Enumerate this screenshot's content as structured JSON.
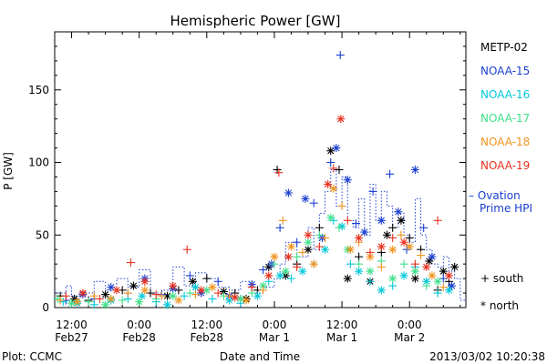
{
  "chart_data": {
    "type": "scatter",
    "title": "Hemispheric Power [GW]",
    "ylabel": "P [GW]",
    "xlabel": "Date and Time",
    "ylim": [
      0,
      190
    ],
    "y_ticks": [
      0,
      50,
      100,
      150
    ],
    "x_ticks": [
      {
        "hours": 0,
        "line1": "12:00",
        "line2": "Feb27"
      },
      {
        "hours": 12,
        "line1": "0:00",
        "line2": "Feb28"
      },
      {
        "hours": 24,
        "line1": "12:00",
        "line2": "Feb28"
      },
      {
        "hours": 36,
        "line1": "0:00",
        "line2": "Mar 1"
      },
      {
        "hours": 48,
        "line1": "12:00",
        "line2": "Mar 1"
      },
      {
        "hours": 60,
        "line1": "0:00",
        "line2": "Mar 2"
      }
    ],
    "xlim_hours": [
      -3,
      70
    ],
    "series": [
      {
        "name": "METP-02",
        "color": "#000000",
        "points": [
          [
            -2,
            8
          ],
          [
            0.5,
            6
          ],
          [
            3,
            5
          ],
          [
            6,
            9
          ],
          [
            9,
            12
          ],
          [
            11,
            15
          ],
          [
            14,
            10
          ],
          [
            17,
            8
          ],
          [
            19,
            12
          ],
          [
            21.5,
            18
          ],
          [
            24,
            20
          ],
          [
            27,
            11
          ],
          [
            29,
            10
          ],
          [
            31,
            6
          ],
          [
            33,
            12
          ],
          [
            35,
            28
          ],
          [
            36.5,
            95
          ],
          [
            38,
            22
          ],
          [
            40,
            30
          ],
          [
            42,
            40
          ],
          [
            44,
            55
          ],
          [
            46,
            108
          ],
          [
            47.5,
            95
          ],
          [
            49,
            20
          ],
          [
            51,
            35
          ],
          [
            53,
            18
          ],
          [
            55,
            38
          ],
          [
            56,
            50
          ],
          [
            57,
            55
          ],
          [
            58.5,
            60
          ],
          [
            60,
            48
          ],
          [
            61,
            20
          ],
          [
            62,
            40
          ],
          [
            63.5,
            32
          ],
          [
            65,
            12
          ],
          [
            66,
            25
          ],
          [
            67,
            18
          ],
          [
            68,
            28
          ]
        ]
      },
      {
        "name": "NOAA-15",
        "color": "#1b3fcf",
        "points": [
          [
            -1,
            5
          ],
          [
            2,
            9
          ],
          [
            4,
            6
          ],
          [
            7,
            14
          ],
          [
            10,
            10
          ],
          [
            13,
            20
          ],
          [
            16,
            9
          ],
          [
            18,
            13
          ],
          [
            21,
            22
          ],
          [
            23,
            10
          ],
          [
            26,
            18
          ],
          [
            28,
            8
          ],
          [
            30,
            6
          ],
          [
            32,
            16
          ],
          [
            34,
            26
          ],
          [
            35.5,
            30
          ],
          [
            37,
            55
          ],
          [
            38.5,
            79
          ],
          [
            40,
            45
          ],
          [
            41.5,
            75
          ],
          [
            43,
            72
          ],
          [
            44.5,
            48
          ],
          [
            46,
            100
          ],
          [
            47,
            110
          ],
          [
            47.7,
            174
          ],
          [
            49,
            88
          ],
          [
            50.5,
            58
          ],
          [
            52,
            52
          ],
          [
            53.5,
            80
          ],
          [
            55,
            60
          ],
          [
            56.5,
            92
          ],
          [
            58,
            66
          ],
          [
            59.5,
            40
          ],
          [
            61,
            95
          ],
          [
            62.5,
            55
          ],
          [
            64,
            35
          ],
          [
            66,
            20
          ],
          [
            67.5,
            15
          ]
        ]
      },
      {
        "name": "NOAA-16",
        "color": "#00c8d8",
        "points": [
          [
            -1.5,
            4
          ],
          [
            1,
            3
          ],
          [
            4,
            2
          ],
          [
            7,
            5
          ],
          [
            10,
            6
          ],
          [
            12.5,
            8
          ],
          [
            15,
            4
          ],
          [
            17,
            2
          ],
          [
            20,
            8
          ],
          [
            22,
            14
          ],
          [
            25,
            6
          ],
          [
            28,
            5
          ],
          [
            30,
            3
          ],
          [
            33,
            8
          ],
          [
            35,
            18
          ],
          [
            37,
            22
          ],
          [
            39,
            20
          ],
          [
            41,
            25
          ],
          [
            43,
            30
          ],
          [
            45,
            40
          ],
          [
            46.5,
            60
          ],
          [
            48,
            56
          ],
          [
            49.5,
            30
          ],
          [
            51,
            25
          ],
          [
            53,
            18
          ],
          [
            55,
            12
          ],
          [
            57,
            15
          ],
          [
            59,
            22
          ],
          [
            61,
            28
          ],
          [
            63,
            18
          ],
          [
            65,
            10
          ],
          [
            67,
            12
          ]
        ]
      },
      {
        "name": "NOAA-17",
        "color": "#3ee08a",
        "points": [
          [
            -2.5,
            6
          ],
          [
            0,
            3
          ],
          [
            3,
            4
          ],
          [
            6,
            2
          ],
          [
            9,
            5
          ],
          [
            12,
            4
          ],
          [
            15,
            6
          ],
          [
            18,
            8
          ],
          [
            21,
            10
          ],
          [
            24,
            12
          ],
          [
            27,
            8
          ],
          [
            30,
            6
          ],
          [
            32,
            10
          ],
          [
            34,
            15
          ],
          [
            36,
            30
          ],
          [
            38,
            25
          ],
          [
            40,
            35
          ],
          [
            42,
            45
          ],
          [
            44,
            50
          ],
          [
            46,
            62
          ],
          [
            47.5,
            55
          ],
          [
            49,
            40
          ],
          [
            51,
            30
          ],
          [
            53,
            25
          ],
          [
            55,
            32
          ],
          [
            57,
            20
          ],
          [
            59,
            30
          ],
          [
            61,
            25
          ],
          [
            63,
            15
          ],
          [
            65,
            18
          ]
        ]
      },
      {
        "name": "NOAA-18",
        "color": "#f0941e",
        "points": [
          [
            -2,
            5
          ],
          [
            1,
            4
          ],
          [
            4,
            8
          ],
          [
            7,
            6
          ],
          [
            10,
            10
          ],
          [
            13,
            12
          ],
          [
            16,
            8
          ],
          [
            19,
            5
          ],
          [
            22,
            9
          ],
          [
            25,
            14
          ],
          [
            28,
            8
          ],
          [
            31,
            5
          ],
          [
            34,
            12
          ],
          [
            36,
            35
          ],
          [
            37.5,
            60
          ],
          [
            39,
            42
          ],
          [
            41,
            38
          ],
          [
            43,
            30
          ],
          [
            45,
            48
          ],
          [
            46.5,
            82
          ],
          [
            48,
            70
          ],
          [
            49.5,
            40
          ],
          [
            51,
            45
          ],
          [
            53,
            35
          ],
          [
            55,
            28
          ],
          [
            57,
            40
          ],
          [
            58.5,
            50
          ],
          [
            60,
            42
          ],
          [
            62,
            36
          ],
          [
            64,
            22
          ],
          [
            66,
            14
          ]
        ]
      },
      {
        "name": "NOAA-19",
        "color": "#e8301e",
        "points": [
          [
            -1,
            8
          ],
          [
            2,
            10
          ],
          [
            5,
            6
          ],
          [
            8,
            12
          ],
          [
            10.5,
            31
          ],
          [
            13,
            18
          ],
          [
            15,
            9
          ],
          [
            18,
            15
          ],
          [
            20.5,
            40
          ],
          [
            23,
            12
          ],
          [
            26,
            10
          ],
          [
            29,
            7
          ],
          [
            32,
            14
          ],
          [
            35,
            22
          ],
          [
            36.8,
            93
          ],
          [
            38.5,
            35
          ],
          [
            40,
            28
          ],
          [
            42,
            50
          ],
          [
            44,
            42
          ],
          [
            45.5,
            85
          ],
          [
            46.5,
            96
          ],
          [
            47.8,
            130
          ],
          [
            49,
            60
          ],
          [
            51,
            48
          ],
          [
            53,
            38
          ],
          [
            55,
            42
          ],
          [
            57,
            48
          ],
          [
            59,
            45
          ],
          [
            61,
            30
          ],
          [
            63,
            28
          ],
          [
            65,
            60
          ],
          [
            67,
            22
          ]
        ]
      }
    ],
    "ovation_name": "– Ovation Prime HPI",
    "ovation_color": "#1b3fcf",
    "ovation_steps": [
      [
        -3,
        10
      ],
      [
        -1,
        15
      ],
      [
        0,
        8
      ],
      [
        2,
        10
      ],
      [
        4,
        18
      ],
      [
        6,
        12
      ],
      [
        8,
        20
      ],
      [
        10,
        14
      ],
      [
        12,
        26
      ],
      [
        14,
        10
      ],
      [
        16,
        12
      ],
      [
        18,
        28
      ],
      [
        20,
        15
      ],
      [
        22,
        24
      ],
      [
        24,
        20
      ],
      [
        26,
        14
      ],
      [
        28,
        12
      ],
      [
        30,
        18
      ],
      [
        32,
        10
      ],
      [
        34,
        14
      ],
      [
        36,
        20
      ],
      [
        37,
        30
      ],
      [
        38,
        45
      ],
      [
        40,
        35
      ],
      [
        42,
        55
      ],
      [
        43,
        40
      ],
      [
        44,
        65
      ],
      [
        45,
        80
      ],
      [
        46,
        95
      ],
      [
        47,
        70
      ],
      [
        48,
        90
      ],
      [
        49,
        60
      ],
      [
        50,
        55
      ],
      [
        51,
        75
      ],
      [
        52,
        50
      ],
      [
        53,
        85
      ],
      [
        54,
        60
      ],
      [
        55,
        80
      ],
      [
        56,
        70
      ],
      [
        57,
        55
      ],
      [
        58,
        65
      ],
      [
        59,
        50
      ],
      [
        60,
        45
      ],
      [
        61,
        75
      ],
      [
        62,
        50
      ],
      [
        63,
        40
      ],
      [
        64,
        30
      ],
      [
        65,
        28
      ],
      [
        66,
        35
      ],
      [
        67,
        25
      ],
      [
        68,
        20
      ],
      [
        69,
        5
      ]
    ],
    "marker_legend": [
      {
        "symbol": "+",
        "label": "south"
      },
      {
        "symbol": "*",
        "label": "north"
      }
    ]
  },
  "footer": {
    "plot_credit": "Plot: CCMC",
    "timestamp": "2013/03/02 10:20:38"
  }
}
